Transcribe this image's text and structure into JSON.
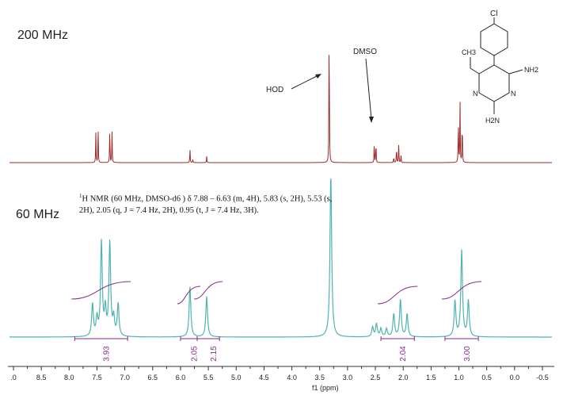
{
  "panels": {
    "top_label": "200 MHz",
    "bottom_label": "60 MHz"
  },
  "annotations": {
    "hod": "HOD",
    "dmso": "DMSO"
  },
  "nmr_report": {
    "sup": "1",
    "text": "H NMR (60 MHz, DMSO-d6 ) δ 7.88 – 6.63 (m, 4H), 5.83 (s, 2H), 5.53 (s, 2H), 2.05 (q, J = 7.4 Hz, 2H), 0.95 (t, J = 7.4 Hz, 3H)."
  },
  "structure_labels": {
    "cl": "Cl",
    "ch3": "CH3",
    "nh2_right": "NH2",
    "nh2_bottom": "H2N",
    "n1": "N",
    "n2": "N"
  },
  "colors": {
    "top_spectrum": "#9c2a2a",
    "bottom_spectrum": "#4fb3b0",
    "integral": "#8a2a8a",
    "axis": "#333333"
  },
  "chart_data": [
    {
      "type": "line",
      "title": "200 MHz",
      "xlabel": "f1 (ppm)",
      "x_reversed": true,
      "xlim": [
        9.0,
        -0.5
      ],
      "peaks": [
        {
          "ppm": 7.52,
          "height": 0.2
        },
        {
          "ppm": 7.48,
          "height": 0.23
        },
        {
          "ppm": 7.27,
          "height": 0.23
        },
        {
          "ppm": 7.23,
          "height": 0.2
        },
        {
          "ppm": 5.83,
          "height": 0.09
        },
        {
          "ppm": 5.78,
          "height": 0.02
        },
        {
          "ppm": 5.53,
          "height": 0.04
        },
        {
          "ppm": 3.33,
          "height": 1.0
        },
        {
          "ppm": 2.52,
          "height": 0.13
        },
        {
          "ppm": 2.49,
          "height": 0.15
        },
        {
          "ppm": 2.17,
          "height": 0.04
        },
        {
          "ppm": 2.12,
          "height": 0.11
        },
        {
          "ppm": 2.08,
          "height": 0.12
        },
        {
          "ppm": 2.04,
          "height": 0.05
        },
        {
          "ppm": 1.01,
          "height": 0.3
        },
        {
          "ppm": 0.98,
          "height": 0.4
        },
        {
          "ppm": 0.94,
          "height": 0.3
        }
      ]
    },
    {
      "type": "line",
      "title": "60 MHz",
      "xlabel": "f1 (ppm)",
      "x_reversed": true,
      "xlim": [
        9.0,
        -0.5
      ],
      "x_ticks": [
        ".0",
        "8.5",
        "8.0",
        "7.5",
        "7.0",
        "6.5",
        "6.0",
        "5.5",
        "5.0",
        "4.5",
        "4.0",
        "3.5",
        "3.0",
        "2.5",
        "2.0",
        "1.5",
        "1.0",
        "0.5",
        "0.0",
        "-0.5"
      ],
      "peaks": [
        {
          "ppm": 7.58,
          "height": 0.2
        },
        {
          "ppm": 7.5,
          "height": 0.11
        },
        {
          "ppm": 7.42,
          "height": 0.58
        },
        {
          "ppm": 7.35,
          "height": 0.16
        },
        {
          "ppm": 7.27,
          "height": 0.58
        },
        {
          "ppm": 7.2,
          "height": 0.11
        },
        {
          "ppm": 7.12,
          "height": 0.2
        },
        {
          "ppm": 5.83,
          "height": 0.31
        },
        {
          "ppm": 5.53,
          "height": 0.25
        },
        {
          "ppm": 3.3,
          "height": 1.0
        },
        {
          "ppm": 2.55,
          "height": 0.06
        },
        {
          "ppm": 2.48,
          "height": 0.08
        },
        {
          "ppm": 2.4,
          "height": 0.05
        },
        {
          "ppm": 2.3,
          "height": 0.05
        },
        {
          "ppm": 2.17,
          "height": 0.14
        },
        {
          "ppm": 2.05,
          "height": 0.23
        },
        {
          "ppm": 1.93,
          "height": 0.14
        },
        {
          "ppm": 1.07,
          "height": 0.22
        },
        {
          "ppm": 0.95,
          "height": 0.53
        },
        {
          "ppm": 0.83,
          "height": 0.22
        }
      ],
      "integrals": [
        {
          "from": 7.9,
          "to": 6.95,
          "value": "3.93"
        },
        {
          "from": 6.0,
          "to": 5.7,
          "value": "2.05"
        },
        {
          "from": 5.7,
          "to": 5.3,
          "value": "2.15"
        },
        {
          "from": 2.4,
          "to": 1.8,
          "value": "2.04"
        },
        {
          "from": 1.25,
          "to": 0.65,
          "value": "3.00"
        }
      ]
    }
  ]
}
